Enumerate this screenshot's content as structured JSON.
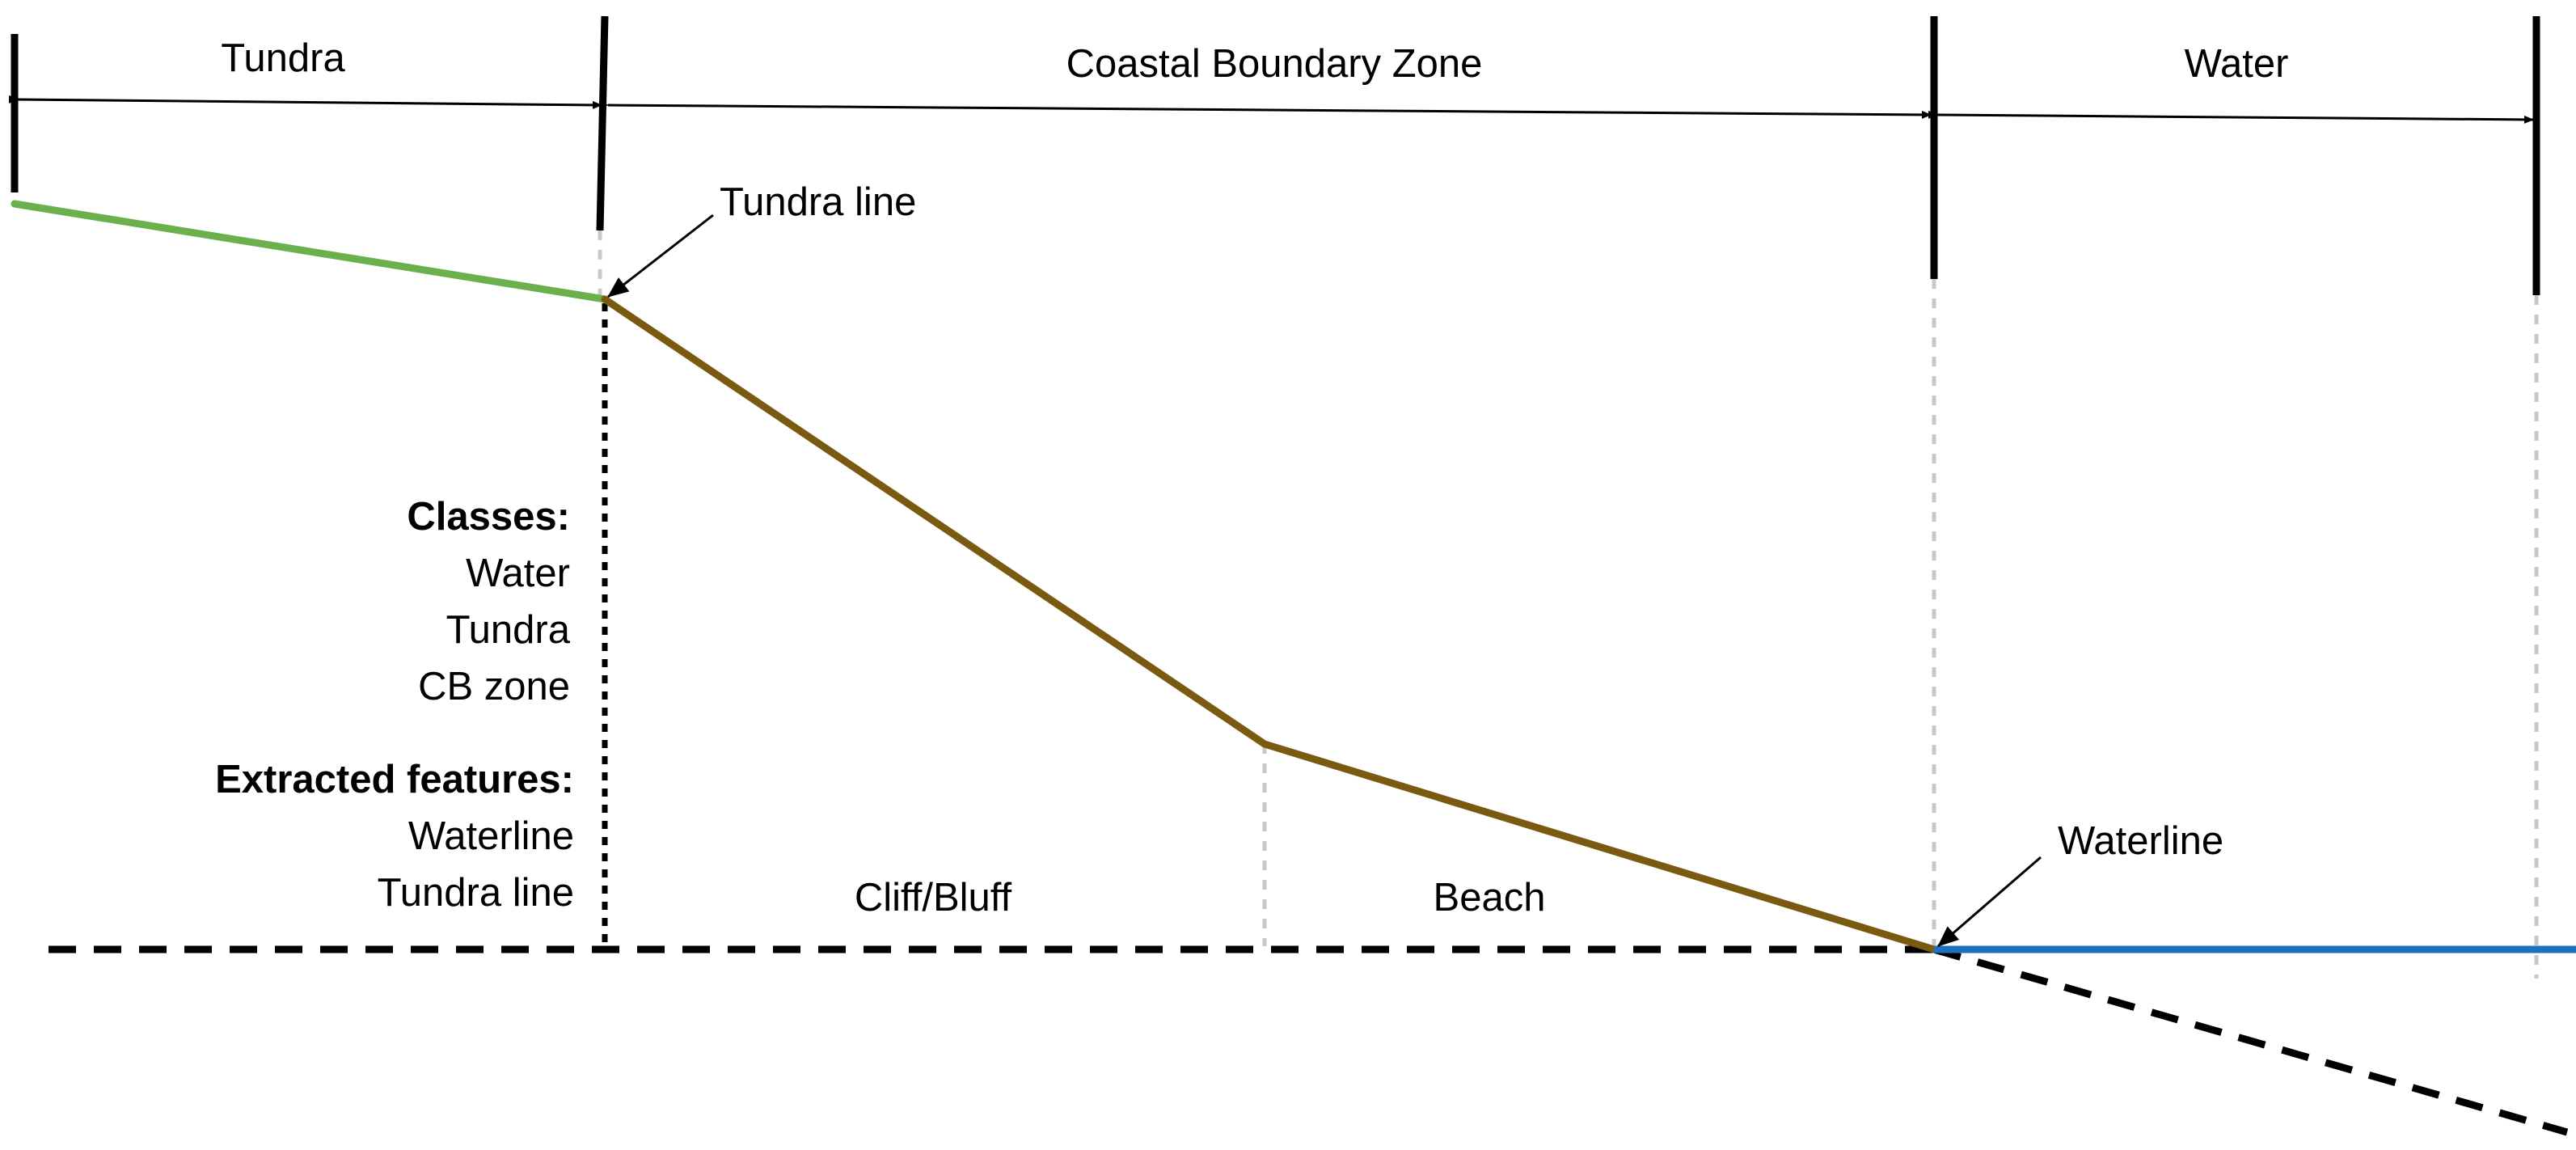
{
  "zones": {
    "tundra": "Tundra",
    "coastal_boundary_zone": "Coastal Boundary Zone",
    "water": "Water"
  },
  "annotations": {
    "tundra_line": "Tundra line",
    "waterline": "Waterline"
  },
  "segments": {
    "cliff_bluff": "Cliff/Bluff",
    "beach": "Beach"
  },
  "legend": {
    "classes_heading": "Classes:",
    "classes": [
      "Water",
      "Tundra",
      "CB zone"
    ],
    "features_heading": "Extracted features:",
    "features": [
      "Waterline",
      "Tundra line"
    ]
  },
  "colors": {
    "tundra_surface": "#6ab04c",
    "coastal_profile": "#7a5a10",
    "water_surface": "#1f6fbf",
    "guide_lines": "#c8c8c8",
    "ink": "#000000"
  }
}
